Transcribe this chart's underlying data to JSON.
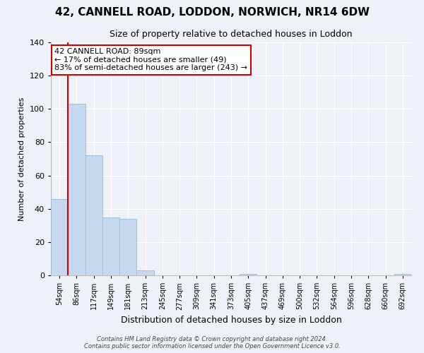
{
  "title": "42, CANNELL ROAD, LODDON, NORWICH, NR14 6DW",
  "subtitle": "Size of property relative to detached houses in Loddon",
  "xlabel": "Distribution of detached houses by size in Loddon",
  "ylabel": "Number of detached properties",
  "bin_labels": [
    "54sqm",
    "86sqm",
    "117sqm",
    "149sqm",
    "181sqm",
    "213sqm",
    "245sqm",
    "277sqm",
    "309sqm",
    "341sqm",
    "373sqm",
    "405sqm",
    "437sqm",
    "469sqm",
    "500sqm",
    "532sqm",
    "564sqm",
    "596sqm",
    "628sqm",
    "660sqm",
    "692sqm"
  ],
  "bar_values": [
    46,
    103,
    72,
    35,
    34,
    3,
    0,
    0,
    0,
    0,
    0,
    1,
    0,
    0,
    0,
    0,
    0,
    0,
    0,
    0,
    1
  ],
  "bar_color": "#c6d9f1",
  "bar_edge_color": "#9ab8d8",
  "vline_color": "#cc0000",
  "vline_x_idx": 1,
  "ylim": [
    0,
    140
  ],
  "yticks": [
    0,
    20,
    40,
    60,
    80,
    100,
    120,
    140
  ],
  "annotation_title": "42 CANNELL ROAD: 89sqm",
  "annotation_line1": "← 17% of detached houses are smaller (49)",
  "annotation_line2": "83% of semi-detached houses are larger (243) →",
  "annotation_box_color": "#ffffff",
  "annotation_box_edge": "#cc0000",
  "footer_line1": "Contains HM Land Registry data © Crown copyright and database right 2024.",
  "footer_line2": "Contains public sector information licensed under the Open Government Licence v3.0.",
  "background_color": "#eef2f8",
  "grid_color": "#ffffff",
  "title_fontsize": 11,
  "subtitle_fontsize": 9
}
